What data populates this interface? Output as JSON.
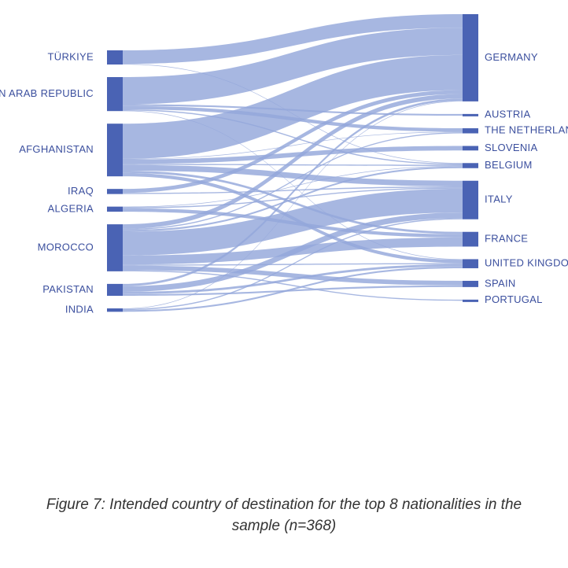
{
  "chart_data": {
    "type": "sankey",
    "sources": [
      "TÜRKIYE",
      "SYRIAN ARAB REPUBLIC",
      "AFGHANISTAN",
      "IRAQ",
      "ALGERIA",
      "MOROCCO",
      "PAKISTAN",
      "INDIA"
    ],
    "source_labels_visible": [
      "TÜRKIYE",
      "AN ARAB REPUBLIC",
      "AFGHANISTAN",
      "IRAQ",
      "ALGERIA",
      "MOROCCO",
      "PAKISTAN",
      "INDIA"
    ],
    "targets": [
      "GERMANY",
      "AUSTRIA",
      "THE NETHERLANDS",
      "SLOVENIA",
      "BELGIUM",
      "ITALY",
      "FRANCE",
      "UNITED KINGDOM",
      "SPAIN",
      "PORTUGAL"
    ],
    "target_labels_visible": [
      "GERMANY",
      "AUSTRIA",
      "THE NETHERLANI",
      "SLOVENIA",
      "BELGIUM",
      "ITALY",
      "FRANCE",
      "UNITED KINGDOI",
      "SPAIN",
      "PORTUGAL"
    ],
    "links": [
      {
        "source": "TÜRKIYE",
        "target": "GERMANY",
        "value": 24
      },
      {
        "source": "TÜRKIYE",
        "target": "BELGIUM",
        "value": 1
      },
      {
        "source": "SYRIAN ARAB REPUBLIC",
        "target": "GERMANY",
        "value": 48
      },
      {
        "source": "SYRIAN ARAB REPUBLIC",
        "target": "AUSTRIA",
        "value": 3
      },
      {
        "source": "SYRIAN ARAB REPUBLIC",
        "target": "THE NETHERLANDS",
        "value": 6
      },
      {
        "source": "SYRIAN ARAB REPUBLIC",
        "target": "BELGIUM",
        "value": 2
      },
      {
        "source": "SYRIAN ARAB REPUBLIC",
        "target": "UNITED KINGDOM",
        "value": 1
      },
      {
        "source": "AFGHANISTAN",
        "target": "GERMANY",
        "value": 62
      },
      {
        "source": "AFGHANISTAN",
        "target": "THE NETHERLANDS",
        "value": 1
      },
      {
        "source": "AFGHANISTAN",
        "target": "SLOVENIA",
        "value": 8
      },
      {
        "source": "AFGHANISTAN",
        "target": "BELGIUM",
        "value": 2
      },
      {
        "source": "AFGHANISTAN",
        "target": "ITALY",
        "value": 10
      },
      {
        "source": "AFGHANISTAN",
        "target": "FRANCE",
        "value": 4
      },
      {
        "source": "AFGHANISTAN",
        "target": "UNITED KINGDOM",
        "value": 6
      },
      {
        "source": "IRAQ",
        "target": "GERMANY",
        "value": 7
      },
      {
        "source": "IRAQ",
        "target": "ITALY",
        "value": 2
      },
      {
        "source": "ALGERIA",
        "target": "BELGIUM",
        "value": 1
      },
      {
        "source": "ALGERIA",
        "target": "ITALY",
        "value": 2
      },
      {
        "source": "ALGERIA",
        "target": "FRANCE",
        "value": 6
      },
      {
        "source": "MOROCCO",
        "target": "GERMANY",
        "value": 8
      },
      {
        "source": "MOROCCO",
        "target": "THE NETHERLANDS",
        "value": 2
      },
      {
        "source": "MOROCCO",
        "target": "BELGIUM",
        "value": 3
      },
      {
        "source": "MOROCCO",
        "target": "ITALY",
        "value": 42
      },
      {
        "source": "MOROCCO",
        "target": "FRANCE",
        "value": 16
      },
      {
        "source": "MOROCCO",
        "target": "UNITED KINGDOM",
        "value": 2
      },
      {
        "source": "MOROCCO",
        "target": "SPAIN",
        "value": 8
      },
      {
        "source": "MOROCCO",
        "target": "PORTUGAL",
        "value": 2
      },
      {
        "source": "PAKISTAN",
        "target": "GERMANY",
        "value": 4
      },
      {
        "source": "PAKISTAN",
        "target": "ITALY",
        "value": 10
      },
      {
        "source": "PAKISTAN",
        "target": "UNITED KINGDOM",
        "value": 4
      },
      {
        "source": "PAKISTAN",
        "target": "SPAIN",
        "value": 3
      },
      {
        "source": "INDIA",
        "target": "GERMANY",
        "value": 1
      },
      {
        "source": "INDIA",
        "target": "ITALY",
        "value": 2
      },
      {
        "source": "INDIA",
        "target": "UNITED KINGDOM",
        "value": 3
      }
    ],
    "colors": {
      "node": "#4a63b4",
      "link": "#94a7da",
      "label": "#3b4f9e"
    }
  },
  "caption": {
    "line1": "Figure 7: Intended country of destination for the top 8 nationalities in the",
    "line2": "sample (n=368)"
  }
}
